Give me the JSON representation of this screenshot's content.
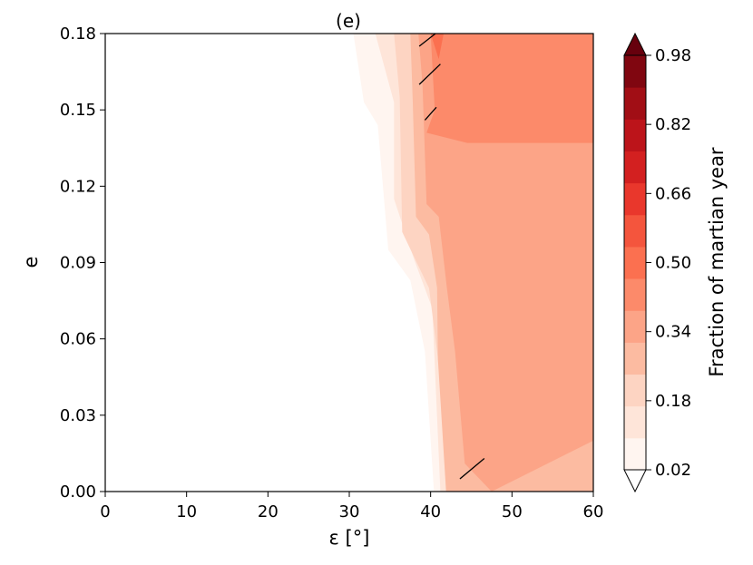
{
  "chart_data": {
    "type": "heatmap",
    "subtype": "filled-contour",
    "title": "(e)",
    "xlabel": "ε [°]",
    "ylabel": "e",
    "xlim": [
      0,
      60
    ],
    "ylim": [
      0,
      0.18
    ],
    "x_ticks": [
      "0",
      "10",
      "20",
      "30",
      "40",
      "50",
      "60"
    ],
    "x_tick_values": [
      0,
      10,
      20,
      30,
      40,
      50,
      60
    ],
    "y_ticks": [
      "0.00",
      "0.03",
      "0.06",
      "0.09",
      "0.12",
      "0.15",
      "0.18"
    ],
    "y_tick_values": [
      0,
      0.03,
      0.06,
      0.09,
      0.12,
      0.15,
      0.18
    ],
    "colorbar": {
      "label": "Fraction of martian year",
      "min": 0.02,
      "max": 0.98,
      "extend": "both",
      "ticks": [
        "0.02",
        "0.18",
        "0.34",
        "0.50",
        "0.66",
        "0.82",
        "0.98"
      ],
      "tick_values": [
        0.02,
        0.18,
        0.34,
        0.5,
        0.66,
        0.82,
        0.98
      ],
      "colors": [
        "#fff5f0",
        "#fee5d9",
        "#fdd4c2",
        "#fcbba1",
        "#fca487",
        "#fc8a6a",
        "#fb7050",
        "#f4553d",
        "#e9372c",
        "#d32020",
        "#bc141a",
        "#a10e15",
        "#800610"
      ],
      "under_color": "#ffffff",
      "over_color": "#67000d"
    },
    "contour_regions": [
      {
        "level": 0.02,
        "color": "#fff5f0",
        "boundary": [
          [
            30.5,
            0.18
          ],
          [
            31.8,
            0.153
          ],
          [
            33.5,
            0.144
          ],
          [
            34.8,
            0.095
          ],
          [
            37.5,
            0.083
          ],
          [
            39.3,
            0.055
          ],
          [
            40.4,
            0.0
          ]
        ]
      },
      {
        "level": 0.1,
        "color": "#fee5d9",
        "boundary": [
          [
            33.2,
            0.18
          ],
          [
            35.5,
            0.153
          ],
          [
            35.5,
            0.115
          ],
          [
            38.0,
            0.091
          ],
          [
            40.2,
            0.072
          ],
          [
            41.2,
            0.0
          ]
        ]
      },
      {
        "level": 0.18,
        "color": "#fdd4c2",
        "boundary": [
          [
            35.5,
            0.18
          ],
          [
            36.2,
            0.155
          ],
          [
            36.5,
            0.102
          ],
          [
            38.0,
            0.092
          ],
          [
            39.8,
            0.08
          ],
          [
            40.8,
            0.055
          ],
          [
            42.8,
            0.0
          ]
        ]
      },
      {
        "level": 0.26,
        "color": "#fcbba1",
        "boundary": [
          [
            37.5,
            0.18
          ],
          [
            37.8,
            0.154
          ],
          [
            38.2,
            0.108
          ],
          [
            39.8,
            0.101
          ],
          [
            40.8,
            0.08
          ],
          [
            40.9,
            0.052
          ],
          [
            41.9,
            0.0
          ]
        ]
      },
      {
        "level": 0.34,
        "color": "#fca487",
        "boundary": [
          [
            38.5,
            0.18
          ],
          [
            39.0,
            0.16
          ],
          [
            39.5,
            0.113
          ],
          [
            41.0,
            0.108
          ],
          [
            42.0,
            0.08
          ],
          [
            43.0,
            0.055
          ],
          [
            44.2,
            0.011
          ],
          [
            47.5,
            0.0
          ],
          [
            60,
            0.02
          ],
          [
            60,
            0.18
          ]
        ]
      },
      {
        "level": 0.42,
        "color": "#fc8a6a",
        "boundary": [
          [
            40.0,
            0.18
          ],
          [
            40.5,
            0.15
          ],
          [
            39.5,
            0.141
          ],
          [
            44.5,
            0.137
          ],
          [
            60,
            0.137
          ],
          [
            60,
            0.18
          ]
        ]
      },
      {
        "level": 0.5,
        "color": "#fb7050",
        "boundary": [
          [
            40.0,
            0.18
          ],
          [
            41.0,
            0.17
          ],
          [
            41.6,
            0.18
          ]
        ]
      }
    ],
    "hatch_segments": [
      [
        [
          38.6,
          0.175
        ],
        [
          40.6,
          0.18
        ]
      ],
      [
        [
          38.6,
          0.16
        ],
        [
          41.2,
          0.168
        ]
      ],
      [
        [
          39.3,
          0.146
        ],
        [
          40.7,
          0.151
        ]
      ],
      [
        [
          43.6,
          0.005
        ],
        [
          46.6,
          0.013
        ]
      ]
    ]
  }
}
